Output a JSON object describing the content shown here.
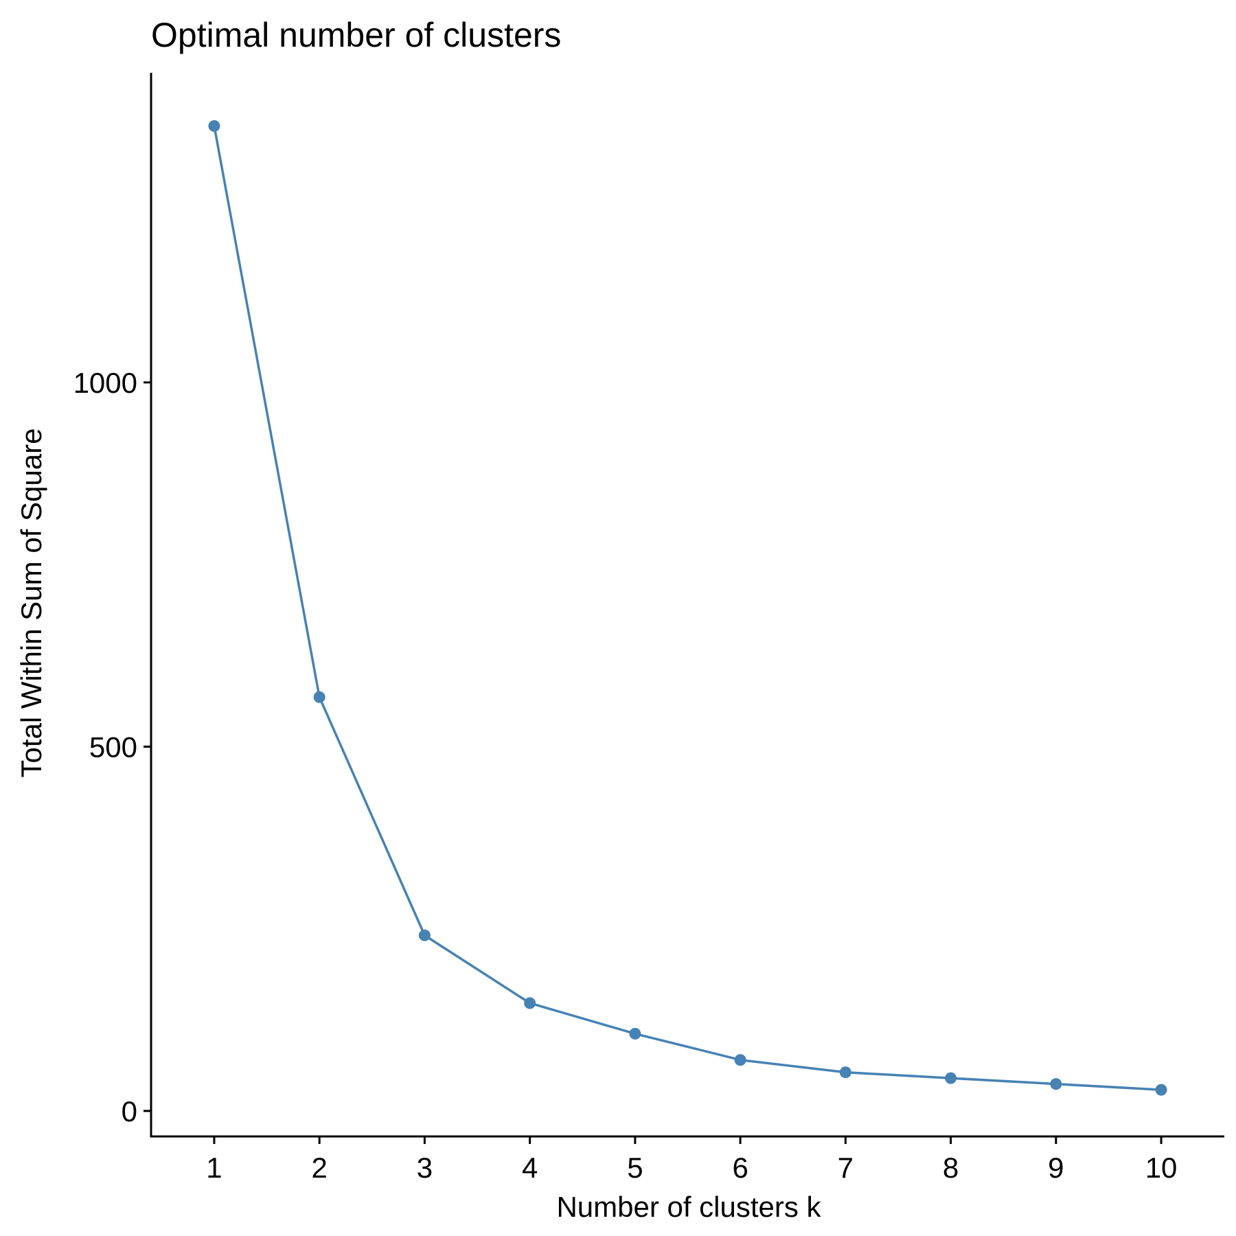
{
  "chart_data": {
    "type": "line",
    "title": "Optimal number of clusters",
    "xlabel": "Number of clusters k",
    "ylabel": "Total Within Sum of Square",
    "x": [
      1,
      2,
      3,
      4,
      5,
      6,
      7,
      8,
      9,
      10
    ],
    "xticks": [
      "1",
      "2",
      "3",
      "4",
      "5",
      "6",
      "7",
      "8",
      "9",
      "10"
    ],
    "yticks": [
      0,
      500,
      1000
    ],
    "ytick_labels": [
      "0",
      "500",
      "1000"
    ],
    "ylim": [
      -35,
      1425
    ],
    "xlim": [
      0.4,
      10.6
    ],
    "series": [
      {
        "values": [
          1352,
          568,
          241,
          148,
          106,
          70,
          53,
          45,
          37,
          29
        ]
      }
    ],
    "grid": false,
    "legend": "none",
    "colors": {
      "series": "#4682B4",
      "axis": "#000000"
    }
  }
}
